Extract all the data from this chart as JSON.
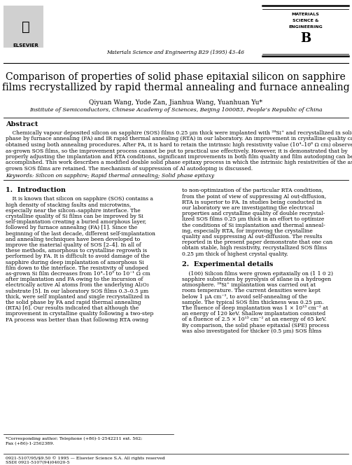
{
  "title_line1": "Comparison of properties of solid phase epitaxial silicon on sapphire",
  "title_line2": "films recrystallized by rapid thermal annealing and furnace annealing",
  "authors": "Qiyuan Wang, Yude Zan, Jianhua Wang, Yuanhuan Yu*",
  "affiliation": "Institute of Semiconductors, Chinese Academy of Sciences, Beijing 100083, People’s Republic of China",
  "journal_line": "Materials Science and Engineering B29 (1995) 43–46",
  "abstract_title": "Abstract",
  "keywords_line": "Keywords: Silicon on sapphire; Rapid thermal annealing; Solid phase epitaxy",
  "intro_title": "1.  Introduction",
  "exp_title": "2.  Experimental details",
  "footer1": "0921-5107/95/$9.50 © 1995 — Elsevier Science S.A. All rights reserved",
  "footer2": "SSDI 0921-5107(94)04020-5",
  "footnote1": "*Corresponding author; Telephone (+86)-1-2542211 ext. 562;",
  "footnote2": "Fax (+86)-1-2562389.",
  "abstract_lines": [
    "    Chemically vapour deposited silicon on sapphire (SOS) films 0.25 μm thick were implanted with ²⁸Si⁺ and recrystallized in solid",
    "phase by furnace annealing (FA) and IR rapid thermal annealing (RTA) in our laboratory. An improvement in crystalline quality can be",
    "obtained using both annealing procedures. After FA, it is hard to retain the intrinsic high resistivity value (10⁴–10⁶ Ω cm) observed in",
    "as-grown SOS films, so the improvement process cannot be put to practical use effectively. However, it is demonstrated that by",
    "properly adjusting the implantation and RTA conditions, significant improvements in both film quality and film autodoping can be",
    "accomplished. This work describes a modified double solid phase epitaxy process in which the intrinsic high resistivities of the as-",
    "grown SOS films are retained. The mechanism of suppression of Al autodoping is discussed."
  ],
  "col1_lines": [
    "    It is known that silicon on sapphire (SOS) contains a",
    "high density of stacking faults and microtwins,",
    "especially near the silicon–sapphire interface. The",
    "crystalline quality of Si films can be improved by Si",
    "self-implantation creating a buried amorphous layer,",
    "followed by furnace annealing (FA) [1]. Since the",
    "beginning of the last decade, different self-implantation",
    "and annealing techniques have been developed to",
    "improve the material quality of SOS [2–4]. In all of",
    "these methods, amorphous to crystalline regrowth is",
    "performed by FA. It is difficult to avoid damage of the",
    "sapphire during deep implantation of amorphous Si",
    "film down to the interface. The resistivity of undoped",
    "as-grown Si film decreases from 10⁴–10⁵ to 10⁻¹ Ω cm",
    "after implantation and FA owing to the incursion of",
    "electrically active Al atoms from the underlying Al₂O₃",
    "substrate [5]. In our laboratory SOS films 0.3–0.5 μm",
    "thick, were self implanted and single recrystallized in",
    "the solid phase by FA and rapid thermal annealing",
    "(RTA) [6]. Our results indicated that although the",
    "improvement in crystalline quality following a two-step",
    "FA process was better than that following RTA owing"
  ],
  "col2_intro_lines": [
    "to non-optimization of the particular RTA conditions,",
    "from the point of view of suppressing Al out-diffusion,",
    "RTA is superior to FA. In studies being conducted in",
    "our laboratory we are investigating the electrical",
    "properties and crystalline quality of double recrystal-",
    "lized SOS films 0.25 μm thick in an effort to optimize",
    "the conditions of Si implantation and thermal anneal-",
    "ing, especially RTA, for improving the crystalline",
    "quality and suppressing Al out-diffusion. The results",
    "reported in the present paper demonstrate that one can",
    "obtain stable, high resistivity, recrystallized SOS films",
    "0.25 μm thick of highest crystal quality."
  ],
  "col2_exp_lines": [
    "    (100) Silicon films were grown epitaxially on (1 1 0 2)",
    "sapphire substrates by pyrolysis of silane in a hydrogen",
    "atmosphere. ²⁸Si⁺ implantation was carried out at",
    "room temperature. The current densities were kept",
    "below 1 μA cm⁻², to avoid self-annealing of the",
    "sample. The typical SOS film thickness was 0.25 μm.",
    "The fluence of deep implantation was 1 × 10¹⁵ cm⁻² at",
    "an energy of 120 keV. Shallow implantation consisted",
    "of a fluence of 2.5 × 10¹⁵ cm⁻² at an energy of 65 keV.",
    "By comparison, the solid phase epitaxial (SPE) process",
    "was also investigated for thicker (0.5 μm) SOS films"
  ],
  "background_color": "#ffffff"
}
